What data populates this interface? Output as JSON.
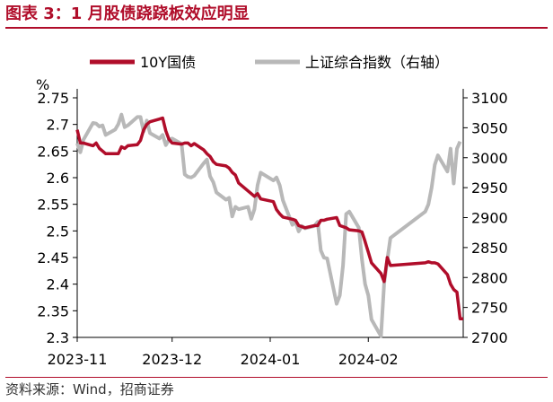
{
  "header": {
    "title": "图表 3：1 月股债跷跷板效应明显"
  },
  "footer": {
    "source": "资料来源：Wind，招商证券"
  },
  "chart_data": {
    "type": "line",
    "unit_left": "%",
    "xlabel": "",
    "x_ticks": [
      "2023-11",
      "2023-12",
      "2024-01",
      "2024-02"
    ],
    "legend_position": "top",
    "grid": false,
    "colors": {
      "bond": "#b00d2a",
      "index": "#b8b8b8"
    },
    "y_left": {
      "lim": [
        2.3,
        2.75
      ],
      "ticks": [
        "2.75",
        "2.7",
        "2.65",
        "2.6",
        "2.55",
        "2.5",
        "2.45",
        "2.4",
        "2.35",
        "2.3"
      ]
    },
    "y_right": {
      "lim": [
        2700,
        3100
      ],
      "ticks": [
        "3100",
        "3050",
        "3000",
        "2950",
        "2900",
        "2850",
        "2800",
        "2750",
        "2700"
      ]
    },
    "series": [
      {
        "name": "10Y国债",
        "axis": "left",
        "values": [
          [
            "2023-11-01",
            2.69
          ],
          [
            "2023-11-02",
            2.665
          ],
          [
            "2023-11-03",
            2.665
          ],
          [
            "2023-11-06",
            2.66
          ],
          [
            "2023-11-07",
            2.665
          ],
          [
            "2023-11-08",
            2.655
          ],
          [
            "2023-11-09",
            2.65
          ],
          [
            "2023-11-10",
            2.645
          ],
          [
            "2023-11-13",
            2.645
          ],
          [
            "2023-11-14",
            2.645
          ],
          [
            "2023-11-15",
            2.658
          ],
          [
            "2023-11-16",
            2.655
          ],
          [
            "2023-11-17",
            2.66
          ],
          [
            "2023-11-20",
            2.662
          ],
          [
            "2023-11-21",
            2.67
          ],
          [
            "2023-11-22",
            2.69
          ],
          [
            "2023-11-23",
            2.7
          ],
          [
            "2023-11-24",
            2.705
          ],
          [
            "2023-11-27",
            2.71
          ],
          [
            "2023-11-28",
            2.712
          ],
          [
            "2023-11-29",
            2.688
          ],
          [
            "2023-11-30",
            2.672
          ],
          [
            "2023-12-01",
            2.665
          ],
          [
            "2023-12-04",
            2.663
          ],
          [
            "2023-12-05",
            2.665
          ],
          [
            "2023-12-06",
            2.665
          ],
          [
            "2023-12-07",
            2.66
          ],
          [
            "2023-12-08",
            2.664
          ],
          [
            "2023-12-11",
            2.652
          ],
          [
            "2023-12-12",
            2.645
          ],
          [
            "2023-12-13",
            2.64
          ],
          [
            "2023-12-14",
            2.63
          ],
          [
            "2023-12-15",
            2.625
          ],
          [
            "2023-12-18",
            2.622
          ],
          [
            "2023-12-19",
            2.618
          ],
          [
            "2023-12-20",
            2.61
          ],
          [
            "2023-12-21",
            2.605
          ],
          [
            "2023-12-22",
            2.59
          ],
          [
            "2023-12-25",
            2.575
          ],
          [
            "2023-12-26",
            2.57
          ],
          [
            "2023-12-27",
            2.565
          ],
          [
            "2023-12-28",
            2.57
          ],
          [
            "2023-12-29",
            2.56
          ],
          [
            "2024-01-02",
            2.555
          ],
          [
            "2024-01-03",
            2.54
          ],
          [
            "2024-01-04",
            2.532
          ],
          [
            "2024-01-05",
            2.526
          ],
          [
            "2024-01-08",
            2.522
          ],
          [
            "2024-01-09",
            2.52
          ],
          [
            "2024-01-10",
            2.51
          ],
          [
            "2024-01-11",
            2.508
          ],
          [
            "2024-01-12",
            2.506
          ],
          [
            "2024-01-15",
            2.51
          ],
          [
            "2024-01-16",
            2.51
          ],
          [
            "2024-01-17",
            2.52
          ],
          [
            "2024-01-18",
            2.52
          ],
          [
            "2024-01-19",
            2.522
          ],
          [
            "2024-01-22",
            2.525
          ],
          [
            "2024-01-23",
            2.51
          ],
          [
            "2024-01-24",
            2.508
          ],
          [
            "2024-01-25",
            2.506
          ],
          [
            "2024-01-26",
            2.502
          ],
          [
            "2024-01-29",
            2.5
          ],
          [
            "2024-01-30",
            2.498
          ],
          [
            "2024-01-31",
            2.48
          ],
          [
            "2024-02-01",
            2.46
          ],
          [
            "2024-02-02",
            2.44
          ],
          [
            "2024-02-05",
            2.42
          ],
          [
            "2024-02-06",
            2.405
          ],
          [
            "2024-02-07",
            2.45
          ],
          [
            "2024-02-08",
            2.435
          ],
          [
            "2024-02-19",
            2.44
          ],
          [
            "2024-02-20",
            2.442
          ],
          [
            "2024-02-21",
            2.44
          ],
          [
            "2024-02-22",
            2.44
          ],
          [
            "2024-02-23",
            2.438
          ],
          [
            "2024-02-26",
            2.418
          ],
          [
            "2024-02-27",
            2.4
          ],
          [
            "2024-02-28",
            2.39
          ],
          [
            "2024-02-29",
            2.385
          ],
          [
            "2024-03-01",
            2.335
          ],
          [
            "2024-03-02",
            2.335
          ]
        ]
      },
      {
        "name": "上证综合指数（右轴）",
        "axis": "right",
        "values": [
          [
            "2023-11-01",
            3024
          ],
          [
            "2023-11-02",
            3009
          ],
          [
            "2023-11-03",
            3030
          ],
          [
            "2023-11-06",
            3058
          ],
          [
            "2023-11-07",
            3057
          ],
          [
            "2023-11-08",
            3052
          ],
          [
            "2023-11-09",
            3054
          ],
          [
            "2023-11-10",
            3038
          ],
          [
            "2023-11-13",
            3047
          ],
          [
            "2023-11-14",
            3056
          ],
          [
            "2023-11-15",
            3072
          ],
          [
            "2023-11-16",
            3051
          ],
          [
            "2023-11-17",
            3054
          ],
          [
            "2023-11-20",
            3068
          ],
          [
            "2023-11-21",
            3068
          ],
          [
            "2023-11-22",
            3044
          ],
          [
            "2023-11-23",
            3062
          ],
          [
            "2023-11-24",
            3041
          ],
          [
            "2023-11-27",
            3032
          ],
          [
            "2023-11-28",
            3038
          ],
          [
            "2023-11-29",
            3021
          ],
          [
            "2023-11-30",
            3030
          ],
          [
            "2023-12-01",
            3032
          ],
          [
            "2023-12-04",
            3023
          ],
          [
            "2023-12-05",
            2972
          ],
          [
            "2023-12-06",
            2968
          ],
          [
            "2023-12-07",
            2967
          ],
          [
            "2023-12-08",
            2970
          ],
          [
            "2023-12-11",
            2991
          ],
          [
            "2023-12-12",
            2997
          ],
          [
            "2023-12-13",
            2969
          ],
          [
            "2023-12-14",
            2959
          ],
          [
            "2023-12-15",
            2942
          ],
          [
            "2023-12-18",
            2930
          ],
          [
            "2023-12-19",
            2933
          ],
          [
            "2023-12-20",
            2902
          ],
          [
            "2023-12-21",
            2918
          ],
          [
            "2023-12-22",
            2914
          ],
          [
            "2023-12-25",
            2918
          ],
          [
            "2023-12-26",
            2898
          ],
          [
            "2023-12-27",
            2914
          ],
          [
            "2023-12-28",
            2954
          ],
          [
            "2023-12-29",
            2975
          ],
          [
            "2024-01-02",
            2962
          ],
          [
            "2024-01-03",
            2967
          ],
          [
            "2024-01-04",
            2954
          ],
          [
            "2024-01-05",
            2929
          ],
          [
            "2024-01-08",
            2888
          ],
          [
            "2024-01-09",
            2893
          ],
          [
            "2024-01-10",
            2877
          ],
          [
            "2024-01-11",
            2886
          ],
          [
            "2024-01-12",
            2882
          ],
          [
            "2024-01-15",
            2886
          ],
          [
            "2024-01-16",
            2893
          ],
          [
            "2024-01-17",
            2845
          ],
          [
            "2024-01-18",
            2833
          ],
          [
            "2024-01-19",
            2832
          ],
          [
            "2024-01-22",
            2756
          ],
          [
            "2024-01-23",
            2770
          ],
          [
            "2024-01-24",
            2820
          ],
          [
            "2024-01-25",
            2906
          ],
          [
            "2024-01-26",
            2910
          ],
          [
            "2024-01-29",
            2883
          ],
          [
            "2024-01-30",
            2830
          ],
          [
            "2024-01-31",
            2789
          ],
          [
            "2024-02-01",
            2770
          ],
          [
            "2024-02-02",
            2730
          ],
          [
            "2024-02-05",
            2702
          ],
          [
            "2024-02-06",
            2790
          ],
          [
            "2024-02-07",
            2829
          ],
          [
            "2024-02-08",
            2866
          ],
          [
            "2024-02-19",
            2910
          ],
          [
            "2024-02-20",
            2922
          ],
          [
            "2024-02-21",
            2950
          ],
          [
            "2024-02-22",
            2988
          ],
          [
            "2024-02-23",
            3004
          ],
          [
            "2024-02-26",
            2977
          ],
          [
            "2024-02-27",
            3015
          ],
          [
            "2024-02-28",
            2957
          ],
          [
            "2024-02-29",
            3015
          ],
          [
            "2024-03-01",
            3027
          ]
        ]
      }
    ]
  }
}
